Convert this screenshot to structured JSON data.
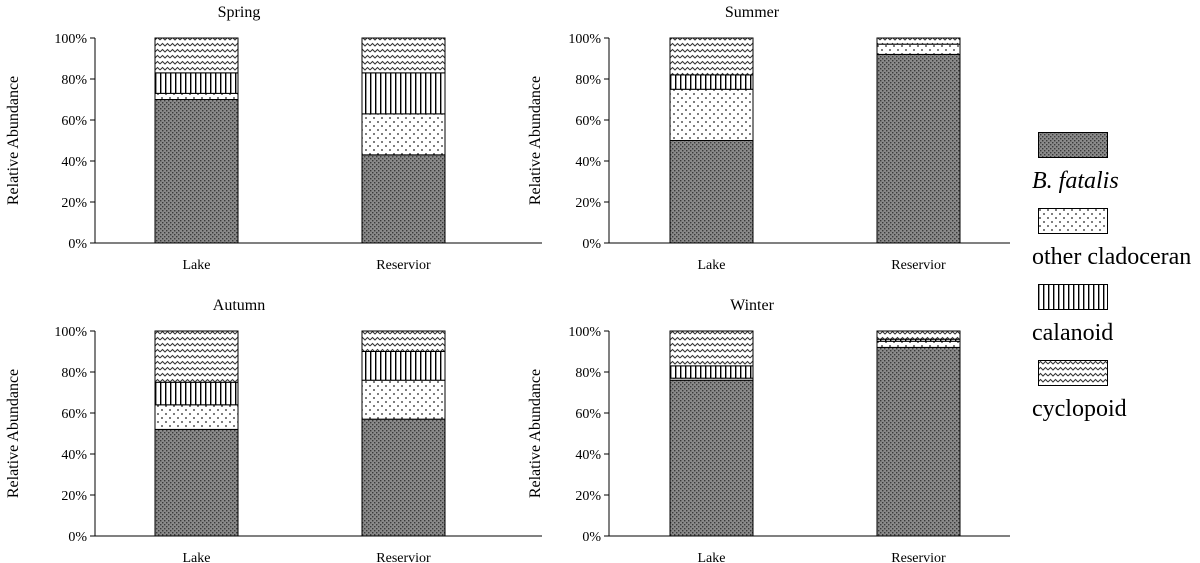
{
  "chart_data": {
    "type": "bar",
    "stacked": true,
    "ylabel": "Relative Abundance",
    "ylim": [
      0,
      100
    ],
    "yticks": [
      "0%",
      "20%",
      "40%",
      "60%",
      "80%",
      "100%"
    ],
    "categories": [
      "Lake",
      "Reservior"
    ],
    "legend": {
      "placement": "right",
      "entries": [
        {
          "name": "B. fatalis",
          "pattern": "dense-dots",
          "italic": true
        },
        {
          "name": "other cladoceran",
          "pattern": "sparse-dots",
          "italic": false
        },
        {
          "name": "calanoid",
          "pattern": "vertical-lines",
          "italic": false
        },
        {
          "name": "cyclopoid",
          "pattern": "zigzag",
          "italic": false
        }
      ]
    },
    "panels": [
      {
        "title": "Spring",
        "series": [
          {
            "name": "B. fatalis",
            "values": [
              70,
              43
            ]
          },
          {
            "name": "other cladoceran",
            "values": [
              3,
              20
            ]
          },
          {
            "name": "calanoid",
            "values": [
              10,
              20
            ]
          },
          {
            "name": "cyclopoid",
            "values": [
              17,
              17
            ]
          }
        ]
      },
      {
        "title": "Summer",
        "series": [
          {
            "name": "B. fatalis",
            "values": [
              50,
              92
            ]
          },
          {
            "name": "other cladoceran",
            "values": [
              25,
              5
            ]
          },
          {
            "name": "calanoid",
            "values": [
              7,
              0
            ]
          },
          {
            "name": "cyclopoid",
            "values": [
              18,
              3
            ]
          }
        ]
      },
      {
        "title": "Autumn",
        "series": [
          {
            "name": "B. fatalis",
            "values": [
              52,
              57
            ]
          },
          {
            "name": "other cladoceran",
            "values": [
              12,
              19
            ]
          },
          {
            "name": "calanoid",
            "values": [
              11,
              14
            ]
          },
          {
            "name": "cyclopoid",
            "values": [
              25,
              10
            ]
          }
        ]
      },
      {
        "title": "Winter",
        "series": [
          {
            "name": "B. fatalis",
            "values": [
              76,
              92
            ]
          },
          {
            "name": "other cladoceran",
            "values": [
              1,
              3
            ]
          },
          {
            "name": "calanoid",
            "values": [
              6,
              1
            ]
          },
          {
            "name": "cyclopoid",
            "values": [
              17,
              4
            ]
          }
        ]
      }
    ]
  }
}
